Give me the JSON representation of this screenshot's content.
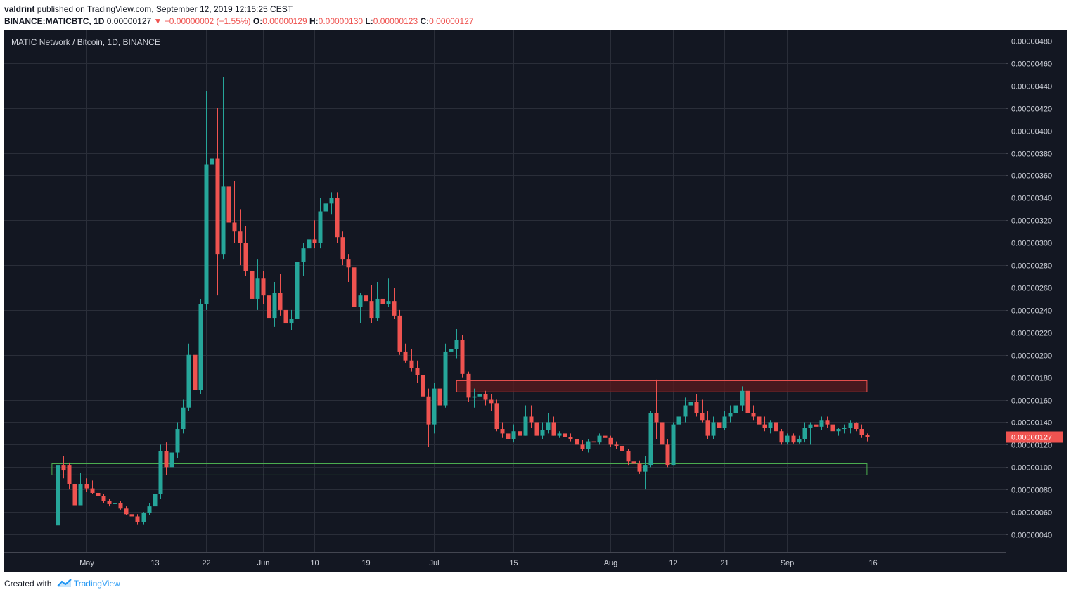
{
  "header": {
    "author": "valdrint",
    "published": "published on TradingView.com, September 12, 2019 12:15:25 CEST",
    "symbol": "BINANCE:MATICBTC, 1D",
    "last": "0.00000127",
    "change": "−0.00000002 (−1.55%)",
    "o_label": "O:",
    "o_value": "0.00000129",
    "h_label": "H:",
    "h_value": "0.00000130",
    "l_label": "L:",
    "l_value": "0.00000123",
    "c_label": "C:",
    "c_value": "0.00000127"
  },
  "chart_title": "MATIC Network / Bitcoin, 1D, BINANCE",
  "footer": {
    "created_with": "Created with",
    "brand": "TradingView"
  },
  "colors": {
    "background": "#131722",
    "grid": "#2a2e39",
    "up": "#26a69a",
    "down": "#ef5350",
    "resistance_fill": "#5a1a1d",
    "resistance_stroke": "#ef5350",
    "support_stroke": "#4caf50",
    "price_line": "#ef5350",
    "axis_text": "#d1d4dc"
  },
  "chart_data": {
    "type": "candlestick",
    "title": "MATIC Network / Bitcoin, 1D, BINANCE",
    "start_date": "2019-04-26",
    "interval": "1D",
    "y_ticks": [
      4e-07,
      6e-07,
      8e-07,
      1e-06,
      1.2e-06,
      1.4e-06,
      1.6e-06,
      1.8e-06,
      2e-06,
      2.2e-06,
      2.4e-06,
      2.6e-06,
      2.8e-06,
      3e-06,
      3.2e-06,
      3.4e-06,
      3.6e-06,
      3.8e-06,
      4e-06,
      4.2e-06,
      4.4e-06,
      4.6e-06,
      4.8e-06
    ],
    "y_tick_labels": [
      "0.00000040",
      "0.00000060",
      "0.00000080",
      "0.00000100",
      "0.00000120",
      "0.00000140",
      "0.00000160",
      "0.00000180",
      "0.00000200",
      "0.00000220",
      "0.00000240",
      "0.00000260",
      "0.00000280",
      "0.00000300",
      "0.00000320",
      "0.00000340",
      "0.00000360",
      "0.00000380",
      "0.00000400",
      "0.00000420",
      "0.00000440",
      "0.00000460",
      "0.00000480"
    ],
    "y_range": [
      3e-07,
      4.9e-06
    ],
    "x_ticks": [
      {
        "label": "May",
        "date": "2019-05-01"
      },
      {
        "label": "13",
        "date": "2019-05-13"
      },
      {
        "label": "22",
        "date": "2019-05-22"
      },
      {
        "label": "Jun",
        "date": "2019-06-01"
      },
      {
        "label": "10",
        "date": "2019-06-10"
      },
      {
        "label": "19",
        "date": "2019-06-19"
      },
      {
        "label": "Jul",
        "date": "2019-07-01"
      },
      {
        "label": "15",
        "date": "2019-07-15"
      },
      {
        "label": "Aug",
        "date": "2019-08-01"
      },
      {
        "label": "12",
        "date": "2019-08-12"
      },
      {
        "label": "21",
        "date": "2019-08-21"
      },
      {
        "label": "Sep",
        "date": "2019-09-01"
      },
      {
        "label": "16",
        "date": "2019-09-16"
      }
    ],
    "last_price": 1.27e-06,
    "last_price_label": "0.00000127",
    "resistance_zone": [
      1.67e-06,
      1.77e-06
    ],
    "support_zone": [
      9.3e-07,
      1.03e-06
    ],
    "support_zone_start_date": "2019-04-25",
    "resistance_zone_start_date": "2019-07-05",
    "zones_end_date": "2019-09-15",
    "candles": [
      [
        4.8e-07,
        2e-06,
        4.8e-07,
        1.02e-06
      ],
      [
        1.02e-06,
        1.1e-06,
        9e-07,
        9.7e-07
      ],
      [
        1.02e-06,
        1.04e-06,
        8e-07,
        8.5e-07
      ],
      [
        8.5e-07,
        9.5e-07,
        6.6e-07,
        6.6e-07
      ],
      [
        6.6e-07,
        9.5e-07,
        6.6e-07,
        8.5e-07
      ],
      [
        8.5e-07,
        9e-07,
        7.8e-07,
        8.1e-07
      ],
      [
        8.1e-07,
        8.8e-07,
        7.6e-07,
        7.7e-07
      ],
      [
        7.7e-07,
        8e-07,
        7.2e-07,
        7.4e-07
      ],
      [
        7.4e-07,
        7.6e-07,
        6.8e-07,
        7e-07
      ],
      [
        7e-07,
        7.2e-07,
        6.5e-07,
        6.7e-07
      ],
      [
        6.7e-07,
        6.9e-07,
        6.4e-07,
        6.8e-07
      ],
      [
        6.8e-07,
        7e-07,
        6.2e-07,
        6.3e-07
      ],
      [
        6.3e-07,
        6.5e-07,
        5.7e-07,
        5.8e-07
      ],
      [
        5.8e-07,
        5.9e-07,
        5.2e-07,
        5.6e-07
      ],
      [
        5.6e-07,
        5.8e-07,
        4.9e-07,
        5.1e-07
      ],
      [
        5.1e-07,
        6e-07,
        4.9e-07,
        5.9e-07
      ],
      [
        5.9e-07,
        6.8e-07,
        5.7e-07,
        6.5e-07
      ],
      [
        6.5e-07,
        8e-07,
        6.3e-07,
        7.6e-07
      ],
      [
        7.6e-07,
        1.2e-06,
        7.2e-07,
        1.14e-06
      ],
      [
        1.14e-06,
        1.22e-06,
        9.3e-07,
        1e-06
      ],
      [
        1e-06,
        1.25e-06,
        9e-07,
        1.13e-06
      ],
      [
        1.13e-06,
        1.4e-06,
        1.08e-06,
        1.34e-06
      ],
      [
        1.34e-06,
        1.6e-06,
        1.3e-06,
        1.53e-06
      ],
      [
        1.53e-06,
        2.1e-06,
        1.5e-06,
        2e-06
      ],
      [
        2e-06,
        2e-06,
        1.65e-06,
        1.69e-06
      ],
      [
        1.69e-06,
        2.5e-06,
        1.65e-06,
        2.45e-06
      ],
      [
        2.45e-06,
        4.35e-06,
        2.4e-06,
        3.7e-06
      ],
      [
        3.7e-06,
        4.95e-06,
        3e-06,
        3.75e-06
      ],
      [
        3.75e-06,
        4.2e-06,
        2.53e-06,
        2.9e-06
      ],
      [
        2.9e-06,
        4.48e-06,
        2.85e-06,
        3.5e-06
      ],
      [
        3.5e-06,
        3.7e-06,
        2.9e-06,
        3.18e-06
      ],
      [
        3.18e-06,
        3.55e-06,
        3e-06,
        3.1e-06
      ],
      [
        3.1e-06,
        3.3e-06,
        2.8e-06,
        3e-06
      ],
      [
        3e-06,
        3.15e-06,
        2.7e-06,
        2.75e-06
      ],
      [
        2.75e-06,
        3e-06,
        2.35e-06,
        2.5e-06
      ],
      [
        2.5e-06,
        2.85e-06,
        2.4e-06,
        2.68e-06
      ],
      [
        2.68e-06,
        2.75e-06,
        2.45e-06,
        2.53e-06
      ],
      [
        2.53e-06,
        2.65e-06,
        2.3e-06,
        2.33e-06
      ],
      [
        2.33e-06,
        2.65e-06,
        2.25e-06,
        2.55e-06
      ],
      [
        2.55e-06,
        2.72e-06,
        2.35e-06,
        2.4e-06
      ],
      [
        2.4e-06,
        2.5e-06,
        2.25e-06,
        2.28e-06
      ],
      [
        2.28e-06,
        2.4e-06,
        2.22e-06,
        2.32e-06
      ],
      [
        2.32e-06,
        2.9e-06,
        2.28e-06,
        2.83e-06
      ],
      [
        2.83e-06,
        3e-06,
        2.7e-06,
        2.95e-06
      ],
      [
        2.95e-06,
        3.1e-06,
        2.8e-06,
        3.03e-06
      ],
      [
        3.03e-06,
        3.2e-06,
        2.95e-06,
        3e-06
      ],
      [
        3e-06,
        3.4e-06,
        2.95e-06,
        3.28e-06
      ],
      [
        3.28e-06,
        3.5e-06,
        3.2e-06,
        3.35e-06
      ],
      [
        3.35e-06,
        3.45e-06,
        3.25e-06,
        3.4e-06
      ],
      [
        3.4e-06,
        3.45e-06,
        3e-06,
        3.05e-06
      ],
      [
        3.05e-06,
        3.1e-06,
        2.8e-06,
        2.85e-06
      ],
      [
        2.85e-06,
        2.9e-06,
        2.65e-06,
        2.78e-06
      ],
      [
        2.78e-06,
        2.85e-06,
        2.4e-06,
        2.43e-06
      ],
      [
        2.43e-06,
        2.55e-06,
        2.28e-06,
        2.53e-06
      ],
      [
        2.53e-06,
        2.62e-06,
        2.4e-06,
        2.48e-06
      ],
      [
        2.48e-06,
        2.62e-06,
        2.28e-06,
        2.33e-06
      ],
      [
        2.33e-06,
        2.65e-06,
        2.3e-06,
        2.5e-06
      ],
      [
        2.5e-06,
        2.62e-06,
        2.33e-06,
        2.45e-06
      ],
      [
        2.45e-06,
        2.68e-06,
        2.43e-06,
        2.48e-06
      ],
      [
        2.48e-06,
        2.6e-06,
        2.32e-06,
        2.35e-06
      ],
      [
        2.35e-06,
        2.4e-06,
        2e-06,
        2.03e-06
      ],
      [
        2.03e-06,
        2.1e-06,
        1.93e-06,
        1.95e-06
      ],
      [
        1.95e-06,
        2.05e-06,
        1.85e-06,
        1.88e-06
      ],
      [
        1.88e-06,
        1.95e-06,
        1.75e-06,
        1.82e-06
      ],
      [
        1.82e-06,
        1.9e-06,
        1.6e-06,
        1.63e-06
      ],
      [
        1.63e-06,
        1.7e-06,
        1.18e-06,
        1.38e-06
      ],
      [
        1.38e-06,
        1.75e-06,
        1.3e-06,
        1.7e-06
      ],
      [
        1.7e-06,
        1.8e-06,
        1.5e-06,
        1.55e-06
      ],
      [
        1.55e-06,
        2.1e-06,
        1.53e-06,
        2.03e-06
      ],
      [
        2.03e-06,
        2.27e-06,
        1.95e-06,
        2.05e-06
      ],
      [
        2.05e-06,
        2.23e-06,
        1.97e-06,
        2.13e-06
      ],
      [
        2.13e-06,
        2.18e-06,
        1.8e-06,
        1.83e-06
      ],
      [
        1.83e-06,
        1.85e-06,
        1.58e-06,
        1.62e-06
      ],
      [
        1.62e-06,
        1.7e-06,
        1.53e-06,
        1.63e-06
      ],
      [
        1.63e-06,
        1.8e-06,
        1.6e-06,
        1.65e-06
      ],
      [
        1.65e-06,
        1.68e-06,
        1.55e-06,
        1.6e-06
      ],
      [
        1.6e-06,
        1.65e-06,
        1.5e-06,
        1.57e-06
      ],
      [
        1.57e-06,
        1.6e-06,
        1.32e-06,
        1.34e-06
      ],
      [
        1.34e-06,
        1.4e-06,
        1.26e-06,
        1.3e-06
      ],
      [
        1.3e-06,
        1.35e-06,
        1.14e-06,
        1.25e-06
      ],
      [
        1.25e-06,
        1.38e-06,
        1.22e-06,
        1.32e-06
      ],
      [
        1.32e-06,
        1.35e-06,
        1.25e-06,
        1.28e-06
      ],
      [
        1.28e-06,
        1.55e-06,
        1.28e-06,
        1.45e-06
      ],
      [
        1.45e-06,
        1.55e-06,
        1.35e-06,
        1.4e-06
      ],
      [
        1.4e-06,
        1.45e-06,
        1.25e-06,
        1.28e-06
      ],
      [
        1.28e-06,
        1.4e-06,
        1.25e-06,
        1.33e-06
      ],
      [
        1.33e-06,
        1.48e-06,
        1.3e-06,
        1.4e-06
      ],
      [
        1.4e-06,
        1.45e-06,
        1.28e-06,
        1.28e-06
      ],
      [
        1.28e-06,
        1.32e-06,
        1.26e-06,
        1.3e-06
      ],
      [
        1.3e-06,
        1.32e-06,
        1.26e-06,
        1.27e-06
      ],
      [
        1.27e-06,
        1.3e-06,
        1.23e-06,
        1.25e-06
      ],
      [
        1.25e-06,
        1.28e-06,
        1.17e-06,
        1.2e-06
      ],
      [
        1.2e-06,
        1.24e-06,
        1.14e-06,
        1.16e-06
      ],
      [
        1.16e-06,
        1.25e-06,
        1.13e-06,
        1.23e-06
      ],
      [
        1.23e-06,
        1.27e-06,
        1.2e-06,
        1.22e-06
      ],
      [
        1.22e-06,
        1.3e-06,
        1.2e-06,
        1.28e-06
      ],
      [
        1.28e-06,
        1.32e-06,
        1.24e-06,
        1.26e-06
      ],
      [
        1.26e-06,
        1.28e-06,
        1.18e-06,
        1.2e-06
      ],
      [
        1.2e-06,
        1.23e-06,
        1.16e-06,
        1.19e-06
      ],
      [
        1.19e-06,
        1.2e-06,
        1.12e-06,
        1.14e-06
      ],
      [
        1.14e-06,
        1.16e-06,
        1.02e-06,
        1.05e-06
      ],
      [
        1.05e-06,
        1.08e-06,
        1e-06,
        1.03e-06
      ],
      [
        1.03e-06,
        1.06e-06,
        9.4e-07,
        9.6e-07
      ],
      [
        9.6e-07,
        1.1e-06,
        8e-07,
        1.02e-06
      ],
      [
        1.02e-06,
        1.5e-06,
        1e-06,
        1.48e-06
      ],
      [
        1.48e-06,
        1.78e-06,
        1.25e-06,
        1.4e-06
      ],
      [
        1.4e-06,
        1.55e-06,
        1.15e-06,
        1.2e-06
      ],
      [
        1.2e-06,
        1.25e-06,
        1e-06,
        1.02e-06
      ],
      [
        1.02e-06,
        1.4e-06,
        1.02e-06,
        1.38e-06
      ],
      [
        1.38e-06,
        1.68e-06,
        1.35e-06,
        1.45e-06
      ],
      [
        1.45e-06,
        1.62e-06,
        1.4e-06,
        1.55e-06
      ],
      [
        1.55e-06,
        1.65e-06,
        1.45e-06,
        1.58e-06
      ],
      [
        1.58e-06,
        1.65e-06,
        1.45e-06,
        1.48e-06
      ],
      [
        1.48e-06,
        1.6e-06,
        1.4e-06,
        1.42e-06
      ],
      [
        1.42e-06,
        1.5e-06,
        1.25e-06,
        1.28e-06
      ],
      [
        1.28e-06,
        1.45e-06,
        1.25e-06,
        1.4e-06
      ],
      [
        1.4e-06,
        1.42e-06,
        1.3e-06,
        1.35e-06
      ],
      [
        1.35e-06,
        1.5e-06,
        1.33e-06,
        1.45e-06
      ],
      [
        1.45e-06,
        1.55e-06,
        1.4e-06,
        1.48e-06
      ],
      [
        1.48e-06,
        1.6e-06,
        1.45e-06,
        1.55e-06
      ],
      [
        1.55e-06,
        1.72e-06,
        1.5e-06,
        1.68e-06
      ],
      [
        1.68e-06,
        1.72e-06,
        1.45e-06,
        1.48e-06
      ],
      [
        1.48e-06,
        1.55e-06,
        1.42e-06,
        1.45e-06
      ],
      [
        1.45e-06,
        1.52e-06,
        1.35e-06,
        1.38e-06
      ],
      [
        1.38e-06,
        1.45e-06,
        1.32e-06,
        1.35e-06
      ],
      [
        1.35e-06,
        1.42e-06,
        1.3e-06,
        1.4e-06
      ],
      [
        1.4e-06,
        1.45e-06,
        1.28e-06,
        1.32e-06
      ],
      [
        1.32e-06,
        1.34e-06,
        1.2e-06,
        1.22e-06
      ],
      [
        1.22e-06,
        1.3e-06,
        1.2e-06,
        1.28e-06
      ],
      [
        1.28e-06,
        1.3e-06,
        1.21e-06,
        1.22e-06
      ],
      [
        1.22e-06,
        1.28e-06,
        1.21e-06,
        1.25e-06
      ],
      [
        1.25e-06,
        1.4e-06,
        1.22e-06,
        1.35e-06
      ],
      [
        1.35e-06,
        1.4e-06,
        1.2e-06,
        1.38e-06
      ],
      [
        1.38e-06,
        1.42e-06,
        1.33e-06,
        1.36e-06
      ],
      [
        1.36e-06,
        1.45e-06,
        1.33e-06,
        1.42e-06
      ],
      [
        1.42e-06,
        1.45e-06,
        1.35e-06,
        1.38e-06
      ],
      [
        1.38e-06,
        1.4e-06,
        1.3e-06,
        1.32e-06
      ],
      [
        1.32e-06,
        1.35e-06,
        1.28e-06,
        1.34e-06
      ],
      [
        1.34e-06,
        1.38e-06,
        1.3e-06,
        1.35e-06
      ],
      [
        1.35e-06,
        1.42e-06,
        1.3e-06,
        1.39e-06
      ],
      [
        1.39e-06,
        1.4e-06,
        1.32e-06,
        1.34e-06
      ],
      [
        1.34e-06,
        1.38e-06,
        1.26e-06,
        1.29e-06
      ],
      [
        1.29e-06,
        1.3e-06,
        1.23e-06,
        1.27e-06
      ]
    ]
  }
}
